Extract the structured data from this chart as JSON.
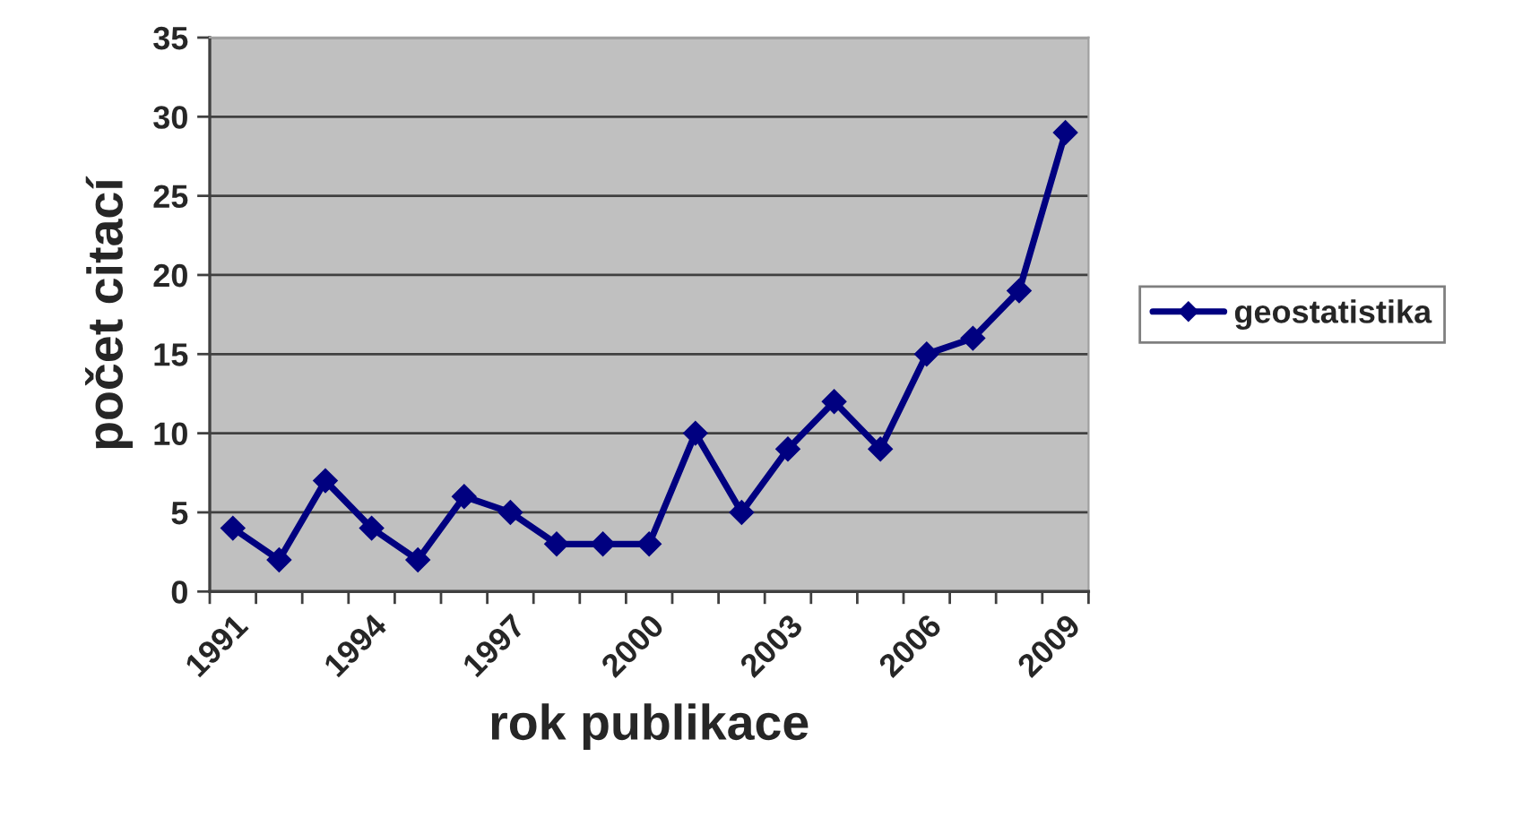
{
  "chart_data": {
    "type": "line",
    "xlabel": "rok publikace",
    "ylabel": "počet citací",
    "categories": [
      "1991",
      null,
      null,
      "1994",
      null,
      null,
      "1997",
      null,
      null,
      "2000",
      null,
      null,
      "2003",
      null,
      null,
      "2006",
      null,
      null,
      "2009"
    ],
    "series": [
      {
        "name": "geostatistika",
        "color": "#000080",
        "values": [
          4,
          2,
          7,
          4,
          2,
          6,
          5,
          3,
          3,
          3,
          10,
          5,
          9,
          12,
          9,
          15,
          16,
          19,
          29
        ]
      }
    ],
    "ylim": [
      0,
      35
    ],
    "yticks": [
      0,
      5,
      10,
      15,
      20,
      25,
      30,
      35
    ],
    "grid": "y",
    "legend": "right",
    "marker": "diamond",
    "line_style": "solid"
  }
}
